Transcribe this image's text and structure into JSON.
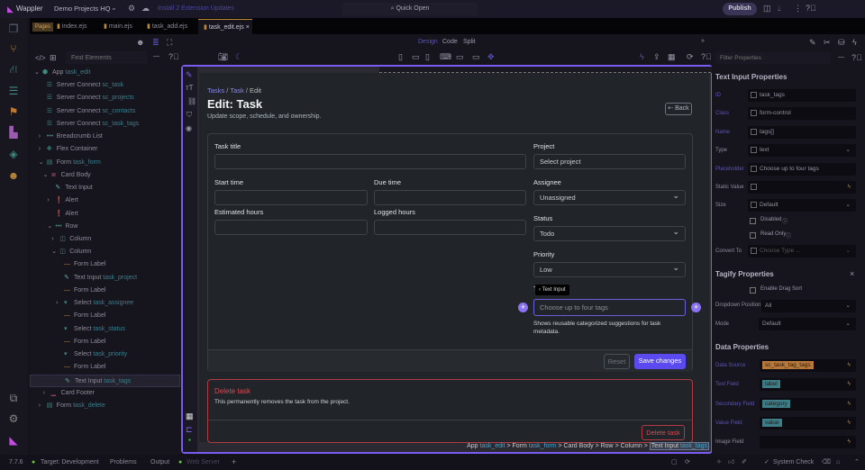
{
  "topbar": {
    "brand": "Wappler",
    "project": "Demo Projects HQ",
    "updates": "Install 2 Extension Updates",
    "quick_open": "Quick Open",
    "publish": "Publish"
  },
  "tabs": {
    "pages_badge": "Pages",
    "items": [
      "index.ejs",
      "main.ejs",
      "task_add.ejs",
      "task_edit.ejs"
    ],
    "close": "×"
  },
  "left_panel": {
    "find_placeholder": "Find Elements",
    "tree": [
      {
        "level": 0,
        "caret": "down",
        "icon": "cube",
        "type": "App",
        "id": "task_edit"
      },
      {
        "level": 1,
        "caret": "",
        "icon": "database",
        "type": "Server Connect",
        "id": "sc_task"
      },
      {
        "level": 1,
        "caret": "",
        "icon": "database",
        "type": "Server Connect",
        "id": "sc_projects"
      },
      {
        "level": 1,
        "caret": "",
        "icon": "database",
        "type": "Server Connect",
        "id": "sc_contacts"
      },
      {
        "level": 1,
        "caret": "",
        "icon": "database",
        "type": "Server Connect",
        "id": "sc_task_tags"
      },
      {
        "level": 1,
        "caret": "right",
        "icon": "dots",
        "type": "Breadcrumb List",
        "id": ""
      },
      {
        "level": 1,
        "caret": "right",
        "icon": "move",
        "type": "Flex Container",
        "id": ""
      },
      {
        "level": 1,
        "caret": "down",
        "icon": "file",
        "type": "Form",
        "id": "task_form"
      },
      {
        "level": 2,
        "caret": "down",
        "icon": "list",
        "type": "Card Body",
        "id": ""
      },
      {
        "level": 3,
        "caret": "",
        "icon": "pencil",
        "type": "Text Input",
        "id": ""
      },
      {
        "level": 3,
        "caret": "right",
        "icon": "alert",
        "type": "Alert",
        "id": ""
      },
      {
        "level": 3,
        "caret": "",
        "icon": "alert",
        "type": "Alert",
        "id": ""
      },
      {
        "level": 3,
        "caret": "down",
        "icon": "dots",
        "type": "Row",
        "id": ""
      },
      {
        "level": 4,
        "caret": "right",
        "icon": "column",
        "type": "Column",
        "id": ""
      },
      {
        "level": 4,
        "caret": "down",
        "icon": "column",
        "type": "Column",
        "id": ""
      },
      {
        "level": 5,
        "caret": "",
        "icon": "label",
        "type": "Form Label",
        "id": ""
      },
      {
        "level": 5,
        "caret": "",
        "icon": "pencil",
        "type": "Text Input",
        "id": "task_project"
      },
      {
        "level": 5,
        "caret": "",
        "icon": "label",
        "type": "Form Label",
        "id": ""
      },
      {
        "level": 5,
        "caret": "right",
        "icon": "select",
        "type": "Select",
        "id": "task_assignee"
      },
      {
        "level": 5,
        "caret": "",
        "icon": "label",
        "type": "Form Label",
        "id": ""
      },
      {
        "level": 5,
        "caret": "",
        "icon": "select",
        "type": "Select",
        "id": "task_status"
      },
      {
        "level": 5,
        "caret": "",
        "icon": "label",
        "type": "Form Label",
        "id": ""
      },
      {
        "level": 5,
        "caret": "",
        "icon": "select",
        "type": "Select",
        "id": "task_priority"
      },
      {
        "level": 5,
        "caret": "",
        "icon": "label",
        "type": "Form Label",
        "id": ""
      },
      {
        "level": 5,
        "caret": "",
        "icon": "pencil",
        "type": "Text Input",
        "id": "task_tags",
        "selected": true
      },
      {
        "level": 2,
        "caret": "right",
        "icon": "footer",
        "type": "Card Footer",
        "id": ""
      },
      {
        "level": 1,
        "caret": "right",
        "icon": "file",
        "type": "Form",
        "id": "task_delete"
      }
    ]
  },
  "view_modes": {
    "design": "Design",
    "code": "Code",
    "split": "Split"
  },
  "page": {
    "breadcrumb": [
      "Tasks",
      "Task",
      "Edit"
    ],
    "sep": "/",
    "title": "Edit: Task",
    "subtitle": "Update scope, schedule, and ownership.",
    "back": "Back",
    "fields": {
      "task_title": "Task title",
      "start_time": "Start time",
      "due_time": "Due time",
      "estimated_hours": "Estimated hours",
      "logged_hours": "Logged hours",
      "project": "Project",
      "project_value": "Select project",
      "assignee": "Assignee",
      "assignee_value": "Unassigned",
      "status": "Status",
      "status_value": "Todo",
      "priority": "Priority",
      "priority_value": "Low",
      "tags_placeholder": "Choose up to four tags",
      "tags_help": "Shows reusable categorized suggestions for task metadata.",
      "tags_label_start": "T"
    },
    "tooltip": "Text Input",
    "reset": "Reset",
    "save": "Save changes",
    "delete_card": {
      "title": "Delete task",
      "text": "This permanently removes the task from the project.",
      "button": "Delete task"
    }
  },
  "element_path": [
    {
      "t": "App",
      "id": "task_edit"
    },
    {
      "t": "Form",
      "id": "task_form"
    },
    {
      "t": "Card Body",
      "id": ""
    },
    {
      "t": "Row",
      "id": ""
    },
    {
      "t": "Column",
      "id": ""
    },
    {
      "t": "Text Input",
      "id": "task_tags"
    }
  ],
  "right_panel": {
    "filter_placeholder": "Filter Properties",
    "text_input_header": "Text Input Properties",
    "props": [
      {
        "label": "ID",
        "value": "task_tags",
        "b": true
      },
      {
        "label": "Class",
        "value": "form-control",
        "b": true
      },
      {
        "label": "Name",
        "value": "tags[]",
        "b": true
      },
      {
        "label": "Type",
        "value": "text",
        "dd": true
      },
      {
        "label": "Placeholder",
        "value": "Choose up to four tags",
        "b": true
      },
      {
        "label": "Static Value",
        "value": "",
        "bolt": true
      },
      {
        "label": "Size",
        "value": "Default",
        "dd": true
      }
    ],
    "disabled": "Disabled",
    "read_only": "Read Only",
    "convert_to": "Convert To",
    "convert_placeholder": "Choose Type ...",
    "tagify_header": "Tagify Properties",
    "enable_drag_sort": "Enable Drag Sort",
    "dropdown_position": "Dropdown Position",
    "dropdown_position_value": "All",
    "mode": "Mode",
    "mode_value": "Default",
    "data_header": "Data Properties",
    "data_props": [
      {
        "label": "Data Source",
        "value": "sc_task_tag_tags",
        "color": "#b8783a"
      },
      {
        "label": "Text Field",
        "value": "label",
        "color": "#3f7d86"
      },
      {
        "label": "Secondary Field",
        "value": "category",
        "color": "#3f7d86"
      },
      {
        "label": "Value Field",
        "value": "value",
        "color": "#3f7d86"
      },
      {
        "label": "Image Field",
        "value": "",
        "color": ""
      }
    ]
  },
  "status": {
    "version": "7.7.6",
    "target": "Target: Development",
    "problems": "Problems",
    "output": "Output",
    "web_server": "Web Server",
    "add": "+",
    "system_check": "System Check"
  },
  "colors": {
    "accent": "#7a5cf0",
    "primary": "#5b4af0",
    "danger": "#e0464f"
  }
}
